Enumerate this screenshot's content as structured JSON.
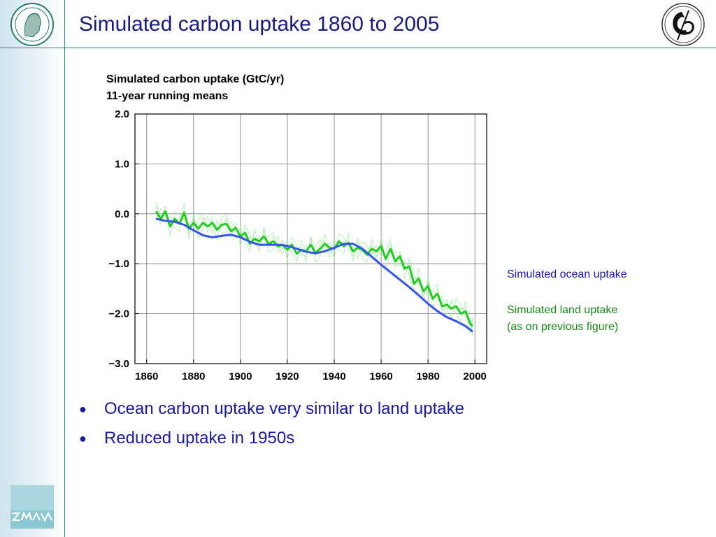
{
  "slide": {
    "title": "Simulated carbon uptake 1860 to 2005",
    "bullets": [
      "Ocean carbon uptake very similar to land uptake",
      "Reduced uptake in 1950s"
    ],
    "legend_ocean": "Simulated ocean uptake",
    "legend_land_line1": "Simulated land uptake",
    "legend_land_line2": "(as on previous figure)"
  },
  "logos": {
    "left": "max-planck-minerva-logo",
    "right": "institute-emblem-logo",
    "bottom": "zmaw-logo"
  },
  "colors": {
    "title": "#1a1a7a",
    "ocean": "#3355ee",
    "land": "#22cc22",
    "land_members": "#aaeeaa",
    "accent_rule": "#2a8a7a"
  },
  "chart_data": {
    "type": "line",
    "title": "Simulated carbon uptake (GtC/yr)",
    "subtitle": "11-year running means",
    "xlabel": "",
    "ylabel": "",
    "xlim": [
      1855,
      2005
    ],
    "ylim": [
      -3.0,
      2.0
    ],
    "xticks": [
      1860,
      1880,
      1900,
      1920,
      1940,
      1960,
      1980,
      2000
    ],
    "yticks": [
      2.0,
      1.0,
      0.0,
      -1.0,
      -2.0,
      -3.0
    ],
    "ytick_labels": [
      "2.0",
      "1.0",
      "0.0",
      "−1.0",
      "−2.0",
      "−3.0"
    ],
    "grid": true,
    "series": [
      {
        "key": "ocean",
        "x": [
          1864,
          1868,
          1872,
          1876,
          1880,
          1884,
          1888,
          1892,
          1896,
          1900,
          1904,
          1908,
          1912,
          1916,
          1920,
          1924,
          1928,
          1932,
          1936,
          1940,
          1944,
          1948,
          1952,
          1956,
          1960,
          1964,
          1968,
          1972,
          1976,
          1980,
          1984,
          1988,
          1992,
          1996,
          1999
        ],
        "y": [
          -0.1,
          -0.14,
          -0.16,
          -0.22,
          -0.33,
          -0.43,
          -0.47,
          -0.44,
          -0.42,
          -0.47,
          -0.56,
          -0.62,
          -0.62,
          -0.62,
          -0.64,
          -0.7,
          -0.76,
          -0.79,
          -0.75,
          -0.68,
          -0.6,
          -0.6,
          -0.7,
          -0.86,
          -1.02,
          -1.17,
          -1.32,
          -1.47,
          -1.63,
          -1.8,
          -1.95,
          -2.07,
          -2.15,
          -2.25,
          -2.36
        ]
      },
      {
        "key": "land",
        "x": [
          1864,
          1866,
          1868,
          1870,
          1872,
          1874,
          1876,
          1878,
          1880,
          1882,
          1884,
          1886,
          1888,
          1890,
          1892,
          1894,
          1896,
          1898,
          1900,
          1902,
          1904,
          1906,
          1908,
          1910,
          1912,
          1914,
          1916,
          1918,
          1920,
          1922,
          1924,
          1926,
          1928,
          1930,
          1932,
          1934,
          1936,
          1938,
          1940,
          1942,
          1944,
          1946,
          1948,
          1950,
          1952,
          1954,
          1956,
          1958,
          1960,
          1962,
          1964,
          1966,
          1968,
          1970,
          1972,
          1974,
          1976,
          1978,
          1980,
          1982,
          1984,
          1986,
          1988,
          1990,
          1992,
          1994,
          1996,
          1998,
          1999
        ],
        "y": [
          0.05,
          -0.1,
          0.05,
          -0.25,
          -0.1,
          -0.2,
          0.02,
          -0.3,
          -0.18,
          -0.3,
          -0.18,
          -0.25,
          -0.18,
          -0.32,
          -0.22,
          -0.2,
          -0.35,
          -0.28,
          -0.45,
          -0.38,
          -0.6,
          -0.5,
          -0.55,
          -0.45,
          -0.6,
          -0.55,
          -0.65,
          -0.62,
          -0.72,
          -0.62,
          -0.8,
          -0.72,
          -0.75,
          -0.62,
          -0.78,
          -0.7,
          -0.6,
          -0.68,
          -0.7,
          -0.55,
          -0.65,
          -0.58,
          -0.75,
          -0.68,
          -0.72,
          -0.82,
          -0.7,
          -0.75,
          -0.65,
          -0.9,
          -0.7,
          -0.95,
          -0.85,
          -1.1,
          -1.05,
          -1.4,
          -1.3,
          -1.55,
          -1.45,
          -1.7,
          -1.6,
          -1.85,
          -1.82,
          -1.9,
          -1.85,
          -2.0,
          -1.95,
          -2.2,
          -2.25
        ]
      }
    ]
  }
}
